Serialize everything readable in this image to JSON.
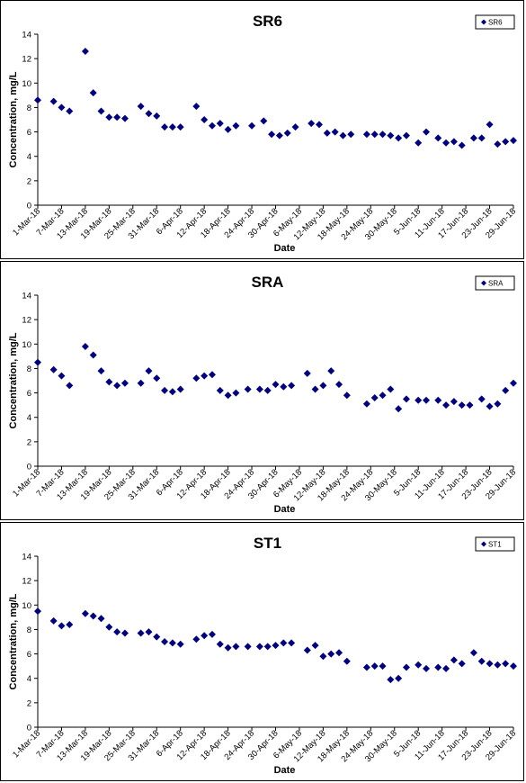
{
  "chart_data": [
    {
      "type": "scatter",
      "title": "SR6",
      "xlabel": "Date",
      "ylabel": "Concentration, mg/L",
      "ylim": [
        0,
        14
      ],
      "yticks": [
        0,
        2,
        4,
        6,
        8,
        10,
        12,
        14
      ],
      "xlim": [
        "2018-03-01",
        "2018-06-29"
      ],
      "xticks": [
        "1-Mar-18",
        "7-Mar-18",
        "13-Mar-18",
        "19-Mar-18",
        "25-Mar-18",
        "31-Mar-18",
        "6-Apr-18",
        "12-Apr-18",
        "18-Apr-18",
        "24-Apr-18",
        "30-Apr-18",
        "6-May-18",
        "12-May-18",
        "18-May-18",
        "24-May-18",
        "30-May-18",
        "5-Jun-18",
        "11-Jun-18",
        "17-Jun-18",
        "23-Jun-18",
        "29-Jun-18"
      ],
      "legend": "top-right",
      "grid": false,
      "series": [
        {
          "name": "SR6",
          "color": "#000080",
          "marker": "diamond",
          "points": [
            [
              "2018-03-01",
              8.6
            ],
            [
              "2018-03-05",
              8.5
            ],
            [
              "2018-03-07",
              8.0
            ],
            [
              "2018-03-09",
              7.7
            ],
            [
              "2018-03-13",
              12.6
            ],
            [
              "2018-03-15",
              9.2
            ],
            [
              "2018-03-17",
              7.7
            ],
            [
              "2018-03-19",
              7.2
            ],
            [
              "2018-03-21",
              7.2
            ],
            [
              "2018-03-23",
              7.1
            ],
            [
              "2018-03-27",
              8.1
            ],
            [
              "2018-03-29",
              7.5
            ],
            [
              "2018-03-31",
              7.3
            ],
            [
              "2018-04-02",
              6.4
            ],
            [
              "2018-04-04",
              6.4
            ],
            [
              "2018-04-06",
              6.4
            ],
            [
              "2018-04-10",
              8.1
            ],
            [
              "2018-04-12",
              7.0
            ],
            [
              "2018-04-14",
              6.5
            ],
            [
              "2018-04-16",
              6.7
            ],
            [
              "2018-04-18",
              6.2
            ],
            [
              "2018-04-20",
              6.5
            ],
            [
              "2018-04-24",
              6.5
            ],
            [
              "2018-04-27",
              6.9
            ],
            [
              "2018-04-29",
              5.8
            ],
            [
              "2018-05-01",
              5.7
            ],
            [
              "2018-05-03",
              5.9
            ],
            [
              "2018-05-05",
              6.4
            ],
            [
              "2018-05-09",
              6.7
            ],
            [
              "2018-05-11",
              6.6
            ],
            [
              "2018-05-13",
              5.9
            ],
            [
              "2018-05-15",
              6.0
            ],
            [
              "2018-05-17",
              5.7
            ],
            [
              "2018-05-19",
              5.8
            ],
            [
              "2018-05-23",
              5.8
            ],
            [
              "2018-05-25",
              5.8
            ],
            [
              "2018-05-27",
              5.8
            ],
            [
              "2018-05-29",
              5.7
            ],
            [
              "2018-05-31",
              5.5
            ],
            [
              "2018-06-02",
              5.7
            ],
            [
              "2018-06-05",
              5.1
            ],
            [
              "2018-06-07",
              6.0
            ],
            [
              "2018-06-10",
              5.5
            ],
            [
              "2018-06-12",
              5.1
            ],
            [
              "2018-06-14",
              5.2
            ],
            [
              "2018-06-16",
              4.9
            ],
            [
              "2018-06-19",
              5.5
            ],
            [
              "2018-06-21",
              5.5
            ],
            [
              "2018-06-23",
              6.6
            ],
            [
              "2018-06-25",
              5.0
            ],
            [
              "2018-06-27",
              5.2
            ],
            [
              "2018-06-29",
              5.3
            ]
          ]
        }
      ]
    },
    {
      "type": "scatter",
      "title": "SRA",
      "xlabel": "Date",
      "ylabel": "Concentration, mg/L",
      "ylim": [
        0,
        14
      ],
      "yticks": [
        0,
        2,
        4,
        6,
        8,
        10,
        12,
        14
      ],
      "xlim": [
        "2018-03-01",
        "2018-06-29"
      ],
      "xticks": [
        "1-Mar-18",
        "7-Mar-18",
        "13-Mar-18",
        "19-Mar-18",
        "25-Mar-18",
        "31-Mar-18",
        "6-Apr-18",
        "12-Apr-18",
        "18-Apr-18",
        "24-Apr-18",
        "30-Apr-18",
        "6-May-18",
        "12-May-18",
        "18-May-18",
        "24-May-18",
        "30-May-18",
        "5-Jun-18",
        "11-Jun-18",
        "17-Jun-18",
        "23-Jun-18",
        "29-Jun-18"
      ],
      "legend": "top-right",
      "grid": false,
      "series": [
        {
          "name": "SRA",
          "color": "#000080",
          "marker": "diamond",
          "points": [
            [
              "2018-03-01",
              8.5
            ],
            [
              "2018-03-05",
              7.9
            ],
            [
              "2018-03-07",
              7.4
            ],
            [
              "2018-03-09",
              6.6
            ],
            [
              "2018-03-13",
              9.8
            ],
            [
              "2018-03-15",
              9.1
            ],
            [
              "2018-03-17",
              7.8
            ],
            [
              "2018-03-19",
              6.9
            ],
            [
              "2018-03-21",
              6.6
            ],
            [
              "2018-03-23",
              6.8
            ],
            [
              "2018-03-27",
              6.8
            ],
            [
              "2018-03-29",
              7.8
            ],
            [
              "2018-03-31",
              7.2
            ],
            [
              "2018-04-02",
              6.2
            ],
            [
              "2018-04-04",
              6.1
            ],
            [
              "2018-04-06",
              6.3
            ],
            [
              "2018-04-10",
              7.2
            ],
            [
              "2018-04-12",
              7.4
            ],
            [
              "2018-04-14",
              7.5
            ],
            [
              "2018-04-16",
              6.2
            ],
            [
              "2018-04-18",
              5.8
            ],
            [
              "2018-04-20",
              6.0
            ],
            [
              "2018-04-23",
              6.3
            ],
            [
              "2018-04-26",
              6.3
            ],
            [
              "2018-04-28",
              6.2
            ],
            [
              "2018-04-30",
              6.7
            ],
            [
              "2018-05-02",
              6.5
            ],
            [
              "2018-05-04",
              6.6
            ],
            [
              "2018-05-08",
              7.6
            ],
            [
              "2018-05-10",
              6.3
            ],
            [
              "2018-05-12",
              6.6
            ],
            [
              "2018-05-14",
              7.8
            ],
            [
              "2018-05-16",
              6.7
            ],
            [
              "2018-05-18",
              5.8
            ],
            [
              "2018-05-23",
              5.1
            ],
            [
              "2018-05-25",
              5.6
            ],
            [
              "2018-05-27",
              5.8
            ],
            [
              "2018-05-29",
              6.3
            ],
            [
              "2018-05-31",
              4.7
            ],
            [
              "2018-06-02",
              5.5
            ],
            [
              "2018-06-05",
              5.4
            ],
            [
              "2018-06-07",
              5.4
            ],
            [
              "2018-06-10",
              5.4
            ],
            [
              "2018-06-12",
              5.0
            ],
            [
              "2018-06-14",
              5.3
            ],
            [
              "2018-06-16",
              5.0
            ],
            [
              "2018-06-18",
              5.0
            ],
            [
              "2018-06-21",
              5.5
            ],
            [
              "2018-06-23",
              4.9
            ],
            [
              "2018-06-25",
              5.1
            ],
            [
              "2018-06-27",
              6.2
            ],
            [
              "2018-06-29",
              6.8
            ]
          ]
        }
      ]
    },
    {
      "type": "scatter",
      "title": "ST1",
      "xlabel": "Date",
      "ylabel": "Concentration, mg/L",
      "ylim": [
        0,
        14
      ],
      "yticks": [
        0,
        2,
        4,
        6,
        8,
        10,
        12,
        14
      ],
      "xlim": [
        "2018-03-01",
        "2018-06-29"
      ],
      "xticks": [
        "1-Mar-18",
        "7-Mar-18",
        "13-Mar-18",
        "19-Mar-18",
        "25-Mar-18",
        "31-Mar-18",
        "6-Apr-18",
        "12-Apr-18",
        "18-Apr-18",
        "24-Apr-18",
        "30-Apr-18",
        "6-May-18",
        "12-May-18",
        "18-May-18",
        "24-May-18",
        "30-May-18",
        "5-Jun-18",
        "11-Jun-18",
        "17-Jun-18",
        "23-Jun-18",
        "29-Jun-18"
      ],
      "legend": "top-right",
      "grid": false,
      "series": [
        {
          "name": "ST1",
          "color": "#000080",
          "marker": "diamond",
          "points": [
            [
              "2018-03-01",
              9.5
            ],
            [
              "2018-03-05",
              8.7
            ],
            [
              "2018-03-07",
              8.3
            ],
            [
              "2018-03-09",
              8.4
            ],
            [
              "2018-03-13",
              9.3
            ],
            [
              "2018-03-15",
              9.1
            ],
            [
              "2018-03-17",
              8.9
            ],
            [
              "2018-03-19",
              8.2
            ],
            [
              "2018-03-21",
              7.8
            ],
            [
              "2018-03-23",
              7.7
            ],
            [
              "2018-03-27",
              7.7
            ],
            [
              "2018-03-29",
              7.8
            ],
            [
              "2018-03-31",
              7.4
            ],
            [
              "2018-04-02",
              7.0
            ],
            [
              "2018-04-04",
              6.9
            ],
            [
              "2018-04-06",
              6.8
            ],
            [
              "2018-04-10",
              7.2
            ],
            [
              "2018-04-12",
              7.5
            ],
            [
              "2018-04-14",
              7.6
            ],
            [
              "2018-04-16",
              6.8
            ],
            [
              "2018-04-18",
              6.5
            ],
            [
              "2018-04-20",
              6.6
            ],
            [
              "2018-04-23",
              6.6
            ],
            [
              "2018-04-26",
              6.6
            ],
            [
              "2018-04-28",
              6.6
            ],
            [
              "2018-04-30",
              6.7
            ],
            [
              "2018-05-02",
              6.9
            ],
            [
              "2018-05-04",
              6.9
            ],
            [
              "2018-05-08",
              6.3
            ],
            [
              "2018-05-10",
              6.7
            ],
            [
              "2018-05-12",
              5.8
            ],
            [
              "2018-05-14",
              6.0
            ],
            [
              "2018-05-16",
              6.1
            ],
            [
              "2018-05-18",
              5.4
            ],
            [
              "2018-05-23",
              4.9
            ],
            [
              "2018-05-25",
              5.0
            ],
            [
              "2018-05-27",
              5.0
            ],
            [
              "2018-05-29",
              3.9
            ],
            [
              "2018-05-31",
              4.0
            ],
            [
              "2018-06-02",
              4.9
            ],
            [
              "2018-06-05",
              5.1
            ],
            [
              "2018-06-07",
              4.8
            ],
            [
              "2018-06-10",
              4.9
            ],
            [
              "2018-06-12",
              4.8
            ],
            [
              "2018-06-14",
              5.5
            ],
            [
              "2018-06-16",
              5.2
            ],
            [
              "2018-06-19",
              6.1
            ],
            [
              "2018-06-21",
              5.4
            ],
            [
              "2018-06-23",
              5.2
            ],
            [
              "2018-06-25",
              5.1
            ],
            [
              "2018-06-27",
              5.2
            ],
            [
              "2018-06-29",
              5.0
            ]
          ]
        }
      ]
    }
  ]
}
